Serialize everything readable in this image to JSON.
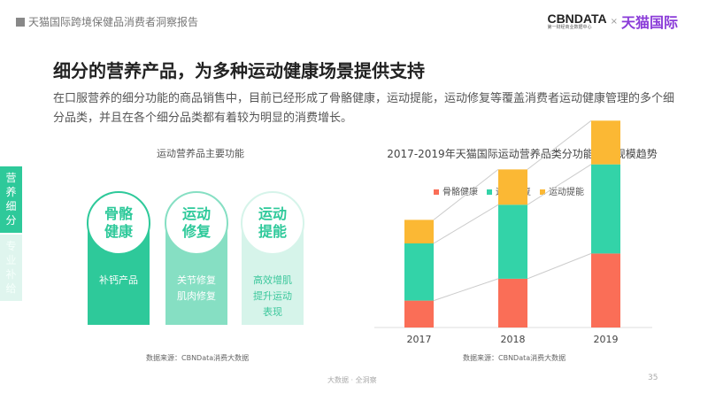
{
  "header": {
    "report_title": "天猫国际跨境保健品消费者洞察报告",
    "logo_cbn": "CBNDATA",
    "logo_cbn_sub": "第一财经商业数据中心",
    "logo_x": "×",
    "logo_tmall": "天猫国际"
  },
  "title": "细分的营养产品，为多种运动健康场景提供支持",
  "description": "在口服营养的细分功能的商品销售中，目前已经形成了骨骼健康，运动提能，运动修复等覆盖消费者运动健康管理的多个细分品类，并且在各个细分品类都有着较为明显的消费增长。",
  "side_tabs": [
    {
      "label": "营养细分",
      "active": true
    },
    {
      "label": "专业补给",
      "active": false
    }
  ],
  "left_panel": {
    "title": "运动营养品主要功能",
    "source": "数据来源：CBNData消费大数据",
    "cards": [
      {
        "heading": "骨骼健康",
        "items": [
          "补钙产品"
        ],
        "color": "#2ec99a"
      },
      {
        "heading": "运动修复",
        "items": [
          "关节修复",
          "肌肉修复"
        ],
        "color": "#86dfc3"
      },
      {
        "heading": "运动提能",
        "items": [
          "高效增肌",
          "提升运动表现"
        ],
        "color": "#d6f4ea"
      }
    ]
  },
  "chart_data": {
    "type": "bar",
    "stacked": true,
    "title": "2017-2019年天猫国际运动营养品类分功能消费规模趋势",
    "categories": [
      "2017",
      "2018",
      "2019"
    ],
    "series": [
      {
        "name": "骨骼健康",
        "color": "#fa6e57",
        "values": [
          16,
          29,
          44
        ]
      },
      {
        "name": "运动修复",
        "color": "#33d3a8",
        "values": [
          34,
          44,
          53
        ]
      },
      {
        "name": "运动提能",
        "color": "#fbb834",
        "values": [
          14,
          21,
          26
        ]
      }
    ],
    "legend": "top",
    "grid": false,
    "y_axis_shown": false,
    "connector_lines": true,
    "source": "数据来源：CBNData消费大数据"
  },
  "footer": {
    "slogan": "大数据 · 全洞察",
    "page": "35"
  }
}
